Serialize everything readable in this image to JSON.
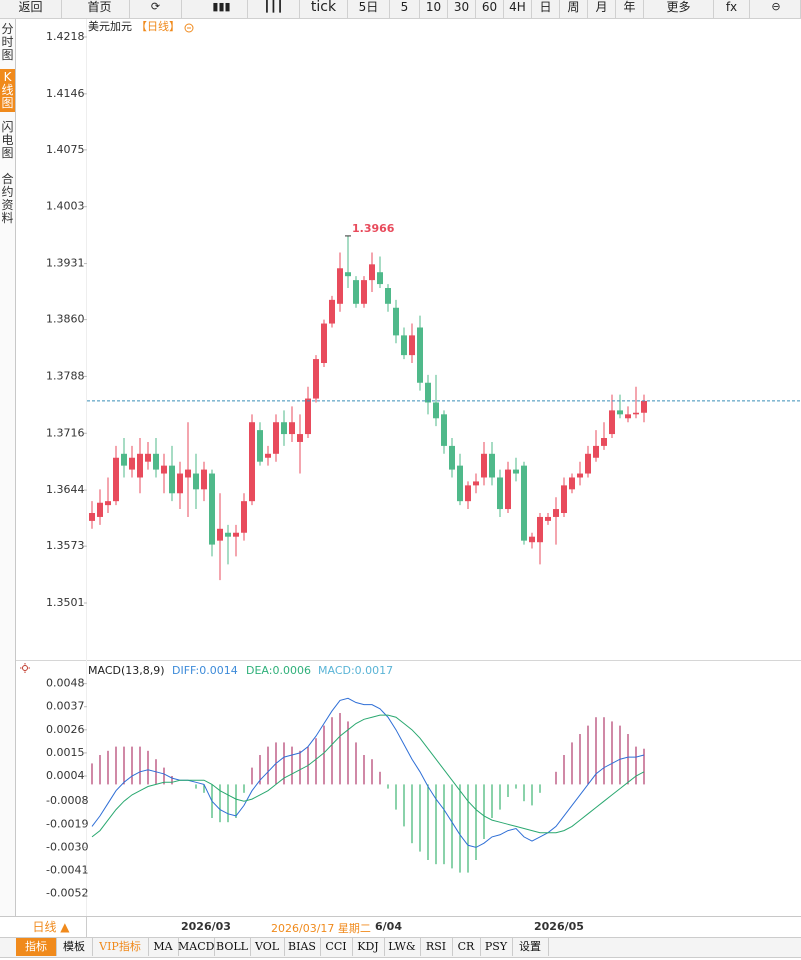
{
  "toolbar": [
    "返回",
    "首页",
    "tick",
    "5日",
    "5",
    "10",
    "30",
    "60",
    "4H",
    "日",
    "周",
    "月",
    "年",
    "更多",
    "fx"
  ],
  "sidebar": {
    "tabs": [
      "分时图",
      "K线图",
      "闪电图",
      "合约资料"
    ],
    "active": 1
  },
  "chart_data": [
    {
      "type": "candlestick",
      "title": "美元加元",
      "subtitle": "【日线】",
      "annotation": "1.3966",
      "up_color": "#e84b5c",
      "down_color": "#4fb98a",
      "ylim": [
        1.34288,
        1.42395
      ],
      "yticks": [
        1.4218,
        1.4146,
        {
          "value": 1.4075,
          "label": "1.4075"
        },
        1.4003,
        1.3931,
        {
          "value": 1.386,
          "label": "1.3860"
        },
        1.3788,
        1.3716,
        1.3644,
        1.3573,
        1.3501
      ],
      "open": [
        1.3605,
        1.361,
        1.3625,
        1.363,
        1.369,
        1.367,
        1.366,
        1.368,
        1.369,
        1.3665,
        1.3675,
        1.364,
        1.366,
        1.3665,
        1.3645,
        1.3665,
        1.358,
        1.359,
        1.3585,
        1.359,
        1.363,
        1.372,
        1.3685,
        1.369,
        1.373,
        1.3715,
        1.3705,
        1.3715,
        1.376,
        1.3805,
        1.3855,
        1.388,
        1.392,
        1.391,
        1.388,
        1.391,
        1.392,
        1.39,
        1.3875,
        1.384,
        1.3815,
        1.385,
        1.378,
        1.3755,
        1.374,
        1.37,
        1.3675,
        1.363,
        1.365,
        1.366,
        1.369,
        1.366,
        1.362,
        1.367,
        1.3675,
        1.3578,
        1.3578,
        1.3605,
        1.361,
        1.3615,
        1.3645,
        1.366,
        1.3665,
        1.3685,
        1.37,
        1.3715,
        1.3745,
        1.3735,
        1.374,
        1.3742
      ],
      "close": [
        1.3615,
        1.3628,
        1.363,
        1.3685,
        1.3675,
        1.3685,
        1.369,
        1.369,
        1.367,
        1.3675,
        1.364,
        1.3665,
        1.367,
        1.3645,
        1.367,
        1.3575,
        1.3595,
        1.3585,
        1.359,
        1.363,
        1.373,
        1.368,
        1.369,
        1.373,
        1.3715,
        1.373,
        1.3715,
        1.376,
        1.381,
        1.3855,
        1.3885,
        1.3925,
        1.3915,
        1.388,
        1.391,
        1.393,
        1.3905,
        1.388,
        1.384,
        1.3815,
        1.384,
        1.378,
        1.3755,
        1.3735,
        1.37,
        1.367,
        1.363,
        1.365,
        1.3655,
        1.369,
        1.366,
        1.362,
        1.367,
        1.3665,
        1.358,
        1.3585,
        1.361,
        1.361,
        1.362,
        1.365,
        1.366,
        1.3665,
        1.369,
        1.37,
        1.371,
        1.3745,
        1.374,
        1.374,
        1.3742,
        1.3757
      ],
      "high": [
        1.363,
        1.3645,
        1.366,
        1.37,
        1.371,
        1.37,
        1.371,
        1.3705,
        1.371,
        1.369,
        1.37,
        1.368,
        1.373,
        1.369,
        1.368,
        1.367,
        1.364,
        1.36,
        1.36,
        1.364,
        1.374,
        1.373,
        1.37,
        1.374,
        1.3745,
        1.375,
        1.374,
        1.3775,
        1.3815,
        1.386,
        1.389,
        1.3945,
        1.3966,
        1.3915,
        1.3915,
        1.3945,
        1.394,
        1.3905,
        1.3885,
        1.385,
        1.3855,
        1.3865,
        1.379,
        1.379,
        1.3745,
        1.371,
        1.369,
        1.3655,
        1.3665,
        1.3705,
        1.3705,
        1.367,
        1.368,
        1.3685,
        1.368,
        1.359,
        1.3615,
        1.3615,
        1.3635,
        1.366,
        1.3665,
        1.368,
        1.37,
        1.372,
        1.373,
        1.3765,
        1.3765,
        1.375,
        1.3775,
        1.3765
      ],
      "low": [
        1.3595,
        1.36,
        1.3615,
        1.3625,
        1.366,
        1.366,
        1.364,
        1.367,
        1.366,
        1.364,
        1.363,
        1.362,
        1.361,
        1.362,
        1.363,
        1.356,
        1.353,
        1.355,
        1.356,
        1.358,
        1.3625,
        1.3675,
        1.3675,
        1.368,
        1.37,
        1.3705,
        1.3665,
        1.371,
        1.3755,
        1.38,
        1.385,
        1.387,
        1.39,
        1.3875,
        1.3875,
        1.3895,
        1.39,
        1.387,
        1.383,
        1.381,
        1.3805,
        1.377,
        1.374,
        1.3725,
        1.369,
        1.366,
        1.3625,
        1.362,
        1.364,
        1.365,
        1.365,
        1.361,
        1.3615,
        1.3655,
        1.3575,
        1.357,
        1.355,
        1.36,
        1.3575,
        1.361,
        1.364,
        1.365,
        1.366,
        1.368,
        1.3695,
        1.371,
        1.3735,
        1.373,
        1.3735,
        1.373
      ]
    },
    {
      "type": "macd",
      "title": "MACD(13,8,9)",
      "ylim": [
        -0.00622,
        0.00583
      ],
      "yticks": [
        0.0048,
        0.0037,
        0.0026,
        0.0015,
        0.0004,
        -0.0008,
        -0.0019,
        {
          "value": -0.003,
          "label": "-0.0030"
        },
        -0.0041,
        -0.0052
      ],
      "series": [
        {
          "name": "DIFF:0.0014",
          "color": "#2f6fd6",
          "label_color": "#3d8bd9",
          "values": [
            -0.002,
            -0.0015,
            -0.0009,
            -0.0003,
            0.0001,
            0.0004,
            0.0006,
            0.0007,
            0.0006,
            0.0005,
            0.0003,
            0.0002,
            0.0002,
            0.0001,
            0,
            -0.0008,
            -0.0012,
            -0.0014,
            -0.0015,
            -0.001,
            -0.0003,
            0.0002,
            0.0006,
            0.001,
            0.0013,
            0.0014,
            0.0015,
            0.0018,
            0.0023,
            0.0029,
            0.0035,
            0.004,
            0.0041,
            0.0039,
            0.0038,
            0.0038,
            0.0036,
            0.0032,
            0.0026,
            0.0019,
            0.0012,
            0.0006,
            -0.0001,
            -0.0007,
            -0.0012,
            -0.0018,
            -0.0024,
            -0.0029,
            -0.003,
            -0.0028,
            -0.0025,
            -0.0024,
            -0.0022,
            -0.0021,
            -0.0025,
            -0.0027,
            -0.0025,
            -0.0023,
            -0.002,
            -0.0015,
            -0.001,
            -0.0005,
            0,
            0.0005,
            0.0008,
            0.001,
            0.0012,
            0.0013,
            0.0013,
            0.0014
          ]
        },
        {
          "name": "DEA:0.0006",
          "color": "#2aa870",
          "label_color": "#2fb07a",
          "values": [
            -0.0025,
            -0.0022,
            -0.0017,
            -0.0012,
            -0.0008,
            -0.0005,
            -0.0003,
            -0.0001,
            0,
            0.0001,
            0.0001,
            0.0002,
            0.0002,
            0.0002,
            0.0002,
            0,
            -0.0003,
            -0.0005,
            -0.0007,
            -0.0008,
            -0.0007,
            -0.0005,
            -0.0003,
            0,
            0.0003,
            0.0005,
            0.0007,
            0.0009,
            0.0012,
            0.0015,
            0.0019,
            0.0023,
            0.0026,
            0.0029,
            0.0031,
            0.0032,
            0.0033,
            0.0033,
            0.0032,
            0.0029,
            0.0026,
            0.0022,
            0.0017,
            0.0012,
            0.0007,
            0.0002,
            -0.0003,
            -0.0008,
            -0.0012,
            -0.0015,
            -0.0017,
            -0.0018,
            -0.0019,
            -0.002,
            -0.0021,
            -0.0022,
            -0.0023,
            -0.0023,
            -0.0023,
            -0.0022,
            -0.002,
            -0.0017,
            -0.0014,
            -0.0011,
            -0.0008,
            -0.0005,
            -0.0002,
            0.0001,
            0.0004,
            0.0006
          ]
        },
        {
          "name": "MACD:0.0017",
          "color": "#b03a6a",
          "negative_color": "#3cb371",
          "label_color": "#5ab4d6",
          "values": [
            0.001,
            0.0014,
            0.0016,
            0.0018,
            0.0018,
            0.0018,
            0.0018,
            0.0016,
            0.0012,
            0.0008,
            0.0004,
            0,
            0,
            -0.0002,
            -0.0004,
            -0.0016,
            -0.0018,
            -0.0018,
            -0.0016,
            -0.0004,
            0.0008,
            0.0014,
            0.0018,
            0.002,
            0.002,
            0.0018,
            0.0016,
            0.0018,
            0.0022,
            0.0028,
            0.0032,
            0.0034,
            0.003,
            0.002,
            0.0014,
            0.0012,
            0.0006,
            -0.0002,
            -0.0012,
            -0.002,
            -0.0028,
            -0.0032,
            -0.0036,
            -0.0038,
            -0.0038,
            -0.004,
            -0.0042,
            -0.0042,
            -0.0036,
            -0.0026,
            -0.0016,
            -0.0012,
            -0.0006,
            -0.0002,
            -0.0008,
            -0.001,
            -0.0004,
            0,
            0.0006,
            0.0014,
            0.002,
            0.0024,
            0.0028,
            0.0032,
            0.0032,
            0.003,
            0.0028,
            0.0024,
            0.0018,
            0.0017
          ]
        }
      ]
    }
  ],
  "x_axis": {
    "period": "日线 ▲",
    "labels": [
      "2026/03",
      "6/04",
      "2026/05"
    ],
    "crosshair": "2026/03/17 星期二"
  },
  "indicator_tabs": [
    "指标",
    "模板",
    "VIP指标",
    "MA",
    "MACD",
    "BOLL",
    "VOL",
    "BIAS",
    "CCI",
    "KDJ",
    "LW&",
    "RSI",
    "CR",
    "PSY",
    "设置"
  ]
}
